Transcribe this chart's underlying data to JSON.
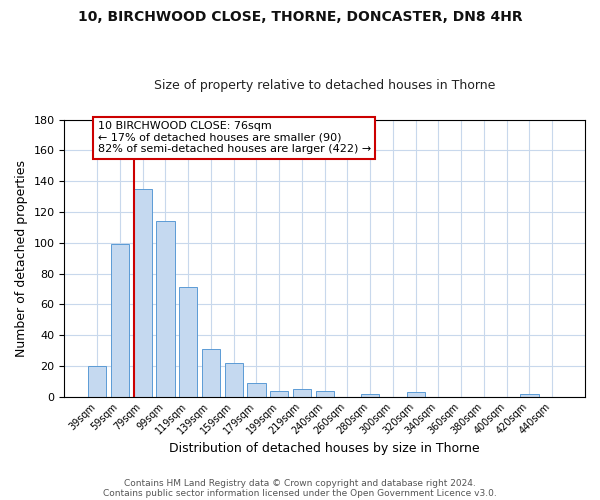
{
  "title": "10, BIRCHWOOD CLOSE, THORNE, DONCASTER, DN8 4HR",
  "subtitle": "Size of property relative to detached houses in Thorne",
  "xlabel": "Distribution of detached houses by size in Thorne",
  "ylabel": "Number of detached properties",
  "bar_labels": [
    "39sqm",
    "59sqm",
    "79sqm",
    "99sqm",
    "119sqm",
    "139sqm",
    "159sqm",
    "179sqm",
    "199sqm",
    "219sqm",
    "240sqm",
    "260sqm",
    "280sqm",
    "300sqm",
    "320sqm",
    "340sqm",
    "360sqm",
    "380sqm",
    "400sqm",
    "420sqm",
    "440sqm"
  ],
  "bar_values": [
    20,
    99,
    135,
    114,
    71,
    31,
    22,
    9,
    4,
    5,
    4,
    0,
    2,
    0,
    3,
    0,
    0,
    0,
    0,
    2,
    0
  ],
  "bar_color": "#c5d9f0",
  "bar_edge_color": "#5b9bd5",
  "ylim": [
    0,
    180
  ],
  "yticks": [
    0,
    20,
    40,
    60,
    80,
    100,
    120,
    140,
    160,
    180
  ],
  "annotation_title": "10 BIRCHWOOD CLOSE: 76sqm",
  "annotation_line1": "← 17% of detached houses are smaller (90)",
  "annotation_line2": "82% of semi-detached houses are larger (422) →",
  "annotation_box_facecolor": "#ffffff",
  "annotation_box_edgecolor": "#cc0000",
  "red_line_color": "#cc0000",
  "footer1": "Contains HM Land Registry data © Crown copyright and database right 2024.",
  "footer2": "Contains public sector information licensed under the Open Government Licence v3.0.",
  "background_color": "#ffffff",
  "grid_color": "#c8d8ec"
}
